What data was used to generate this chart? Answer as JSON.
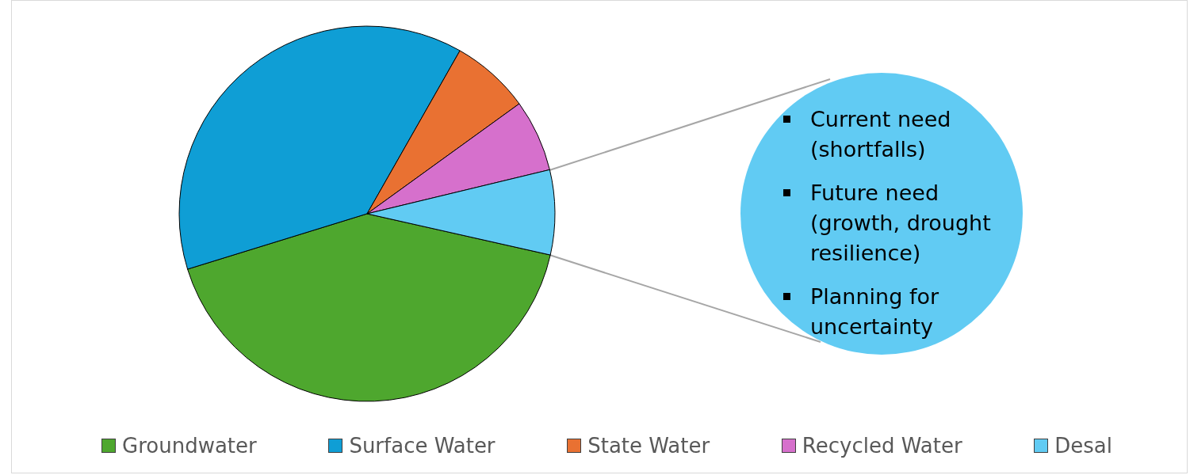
{
  "chart_data": {
    "type": "pie",
    "categories": [
      "Groundwater",
      "Surface Water",
      "State Water",
      "Recycled Water",
      "Desal"
    ],
    "values": [
      41.7,
      38.0,
      6.8,
      6.2,
      7.3
    ],
    "colors": [
      "#4ea72e",
      "#0f9ed5",
      "#e97132",
      "#d670cc",
      "#61cbf3"
    ],
    "legend": "bottom",
    "annotations": [
      "Current need (shortfalls)",
      "Future need (growth, drought resilience)",
      "Planning for uncertainty"
    ]
  }
}
